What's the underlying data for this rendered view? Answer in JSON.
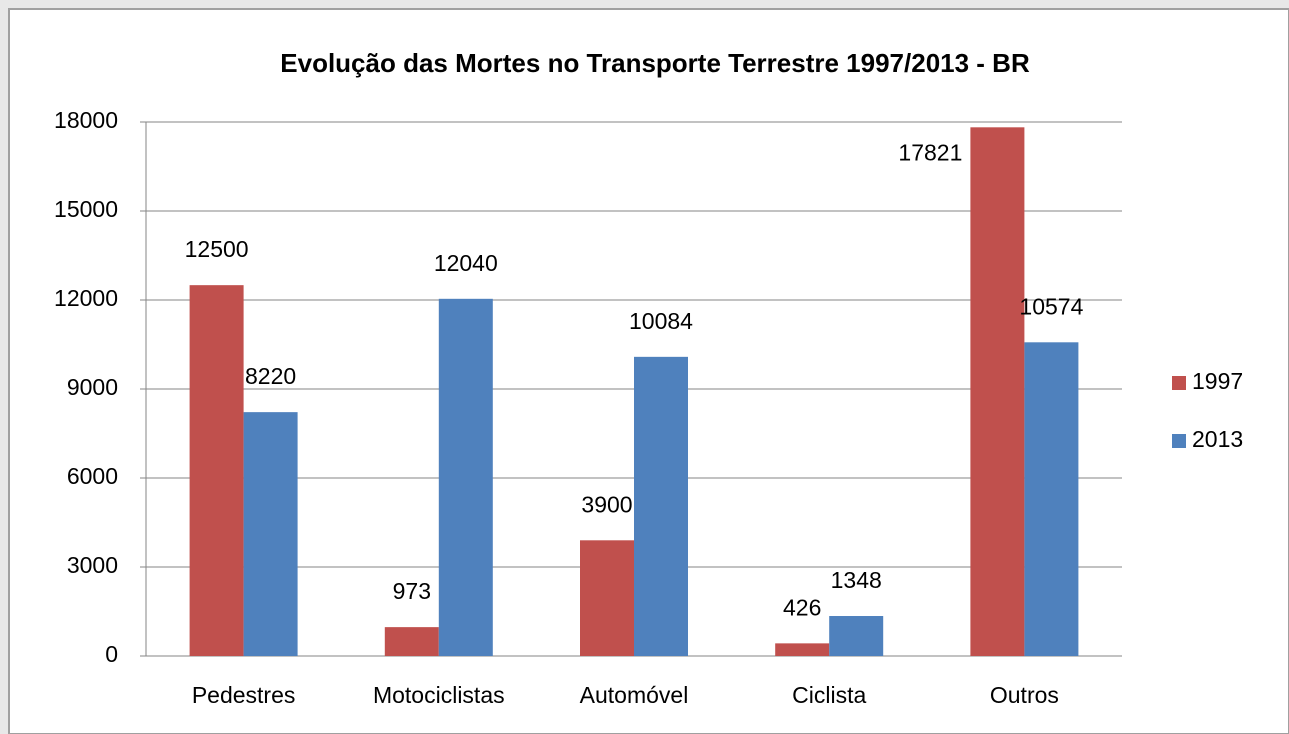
{
  "chart_data": {
    "type": "bar",
    "title": "Evolução das Mortes no Transporte Terrestre 1997/2013 - BR",
    "categories": [
      "Pedestres",
      "Motociclistas",
      "Automóvel",
      "Ciclista",
      "Outros"
    ],
    "series": [
      {
        "name": "1997",
        "color": "#c0504d",
        "values": [
          12500,
          973,
          3900,
          426,
          17821
        ]
      },
      {
        "name": "2013",
        "color": "#4f81bd",
        "values": [
          8220,
          12040,
          10084,
          1348,
          10574
        ]
      }
    ],
    "ylim": [
      0,
      18000
    ],
    "yticks": [
      0,
      3000,
      6000,
      9000,
      12000,
      15000,
      18000
    ],
    "grid": true,
    "legend": "right"
  }
}
